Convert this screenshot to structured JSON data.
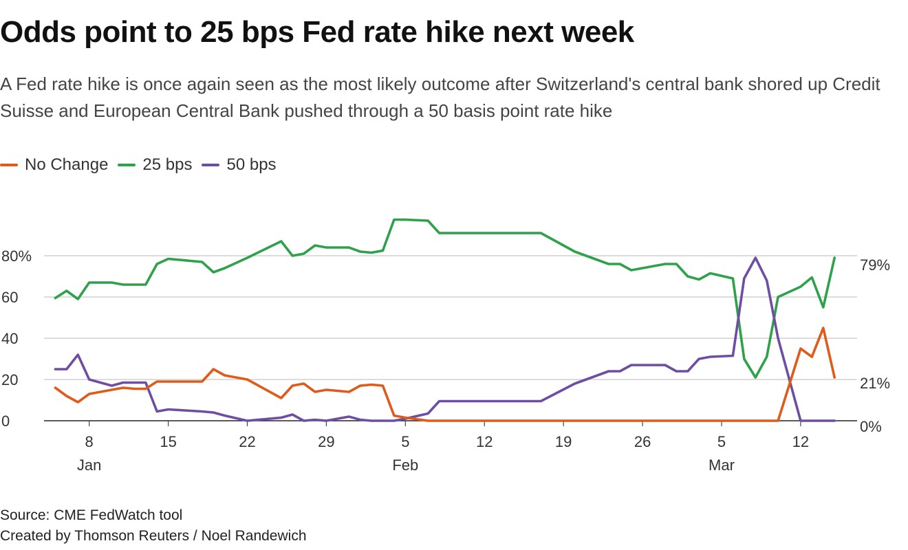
{
  "title": "Odds point to 25 bps Fed rate hike next week",
  "subtitle": "A Fed rate hike is once again seen as the most likely outcome after Switzerland's central bank shored up Credit Suisse and European Central Bank pushed through a 50 basis point rate hike",
  "source": "Source: CME FedWatch tool",
  "credit": "Created by Thomson Reuters / Noel Randewich",
  "colors": {
    "No Change": "#e05a1a",
    "25 bps": "#2ea14a",
    "50 bps": "#6e4ea3"
  },
  "chart_data": {
    "type": "line",
    "title": "Odds point to 25 bps Fed rate hike next week",
    "xlabel": "",
    "ylabel": "",
    "ylim": [
      0,
      100
    ],
    "xlim": [
      4,
      76
    ],
    "y_ticks": [
      0,
      20,
      40,
      60,
      80
    ],
    "y_tick_labels": [
      "0",
      "20",
      "40",
      "60",
      "80%"
    ],
    "x_ticks": [
      {
        "day": 8,
        "label": "8",
        "month": "Jan"
      },
      {
        "day": 15,
        "label": "15",
        "month": ""
      },
      {
        "day": 22,
        "label": "22",
        "month": ""
      },
      {
        "day": 29,
        "label": "29",
        "month": ""
      },
      {
        "day": 36,
        "label": "5",
        "month": "Feb"
      },
      {
        "day": 43,
        "label": "12",
        "month": ""
      },
      {
        "day": 50,
        "label": "19",
        "month": ""
      },
      {
        "day": 57,
        "label": "26",
        "month": ""
      },
      {
        "day": 64,
        "label": "5",
        "month": "Mar"
      },
      {
        "day": 71,
        "label": "12",
        "month": ""
      }
    ],
    "end_labels": [
      "79%",
      "21%",
      "0%"
    ],
    "series": [
      {
        "name": "No Change",
        "x": [
          5,
          6,
          7,
          8,
          10,
          11,
          12,
          13,
          14,
          18,
          19,
          20,
          22,
          25,
          26,
          27,
          28,
          29,
          31,
          32,
          33,
          34,
          35,
          36,
          38,
          39,
          45,
          50,
          55,
          60,
          65,
          67,
          69,
          71,
          72,
          73,
          74
        ],
        "values": [
          16,
          12,
          9,
          13,
          15,
          16,
          15.5,
          15.5,
          19,
          19,
          25,
          22,
          20,
          11,
          17,
          18,
          14,
          15,
          14,
          17,
          17.5,
          17,
          2.5,
          1.5,
          0,
          0,
          0,
          0,
          0,
          0,
          0,
          0,
          0,
          35,
          31,
          45,
          21
        ]
      },
      {
        "name": "25 bps",
        "x": [
          5,
          6,
          7,
          8,
          10,
          11,
          12,
          13,
          14,
          15,
          18,
          19,
          20,
          22,
          25,
          26,
          27,
          28,
          29,
          31,
          32,
          33,
          34,
          35,
          36,
          38,
          39,
          42,
          45,
          48,
          51,
          53,
          54,
          55,
          56,
          59,
          60,
          61,
          62,
          63,
          65,
          66,
          67,
          68,
          69,
          71,
          72,
          73,
          74
        ],
        "values": [
          59.5,
          63,
          59,
          67,
          67,
          66,
          66,
          66,
          76,
          78.5,
          77,
          72,
          74,
          79,
          87,
          80,
          81,
          85,
          84,
          84,
          82,
          81.5,
          82.5,
          97.5,
          97.5,
          97,
          91,
          91,
          91,
          91,
          82,
          78,
          76,
          76,
          73,
          76,
          76,
          70,
          68.5,
          71.5,
          69,
          30,
          21,
          31,
          60,
          65,
          69.5,
          55,
          79
        ]
      },
      {
        "name": "50 bps",
        "x": [
          5,
          6,
          7,
          8,
          10,
          11,
          12,
          13,
          14,
          15,
          18,
          19,
          20,
          22,
          25,
          26,
          27,
          28,
          29,
          31,
          32,
          33,
          34,
          35,
          36,
          38,
          39,
          42,
          45,
          48,
          51,
          53,
          54,
          55,
          56,
          59,
          60,
          61,
          62,
          63,
          65,
          66,
          67,
          68,
          69,
          71,
          72,
          73,
          74
        ],
        "values": [
          25,
          25,
          32,
          20,
          17,
          18.5,
          18.5,
          18.5,
          4.5,
          5.5,
          4.5,
          4,
          2.5,
          0,
          1.5,
          3,
          0,
          0.5,
          0,
          2,
          0.5,
          0,
          0,
          0,
          1,
          3.5,
          9.5,
          9.5,
          9.5,
          9.5,
          18,
          22,
          24,
          24,
          27,
          27,
          24,
          24,
          30,
          31,
          31.5,
          69,
          79,
          68,
          40,
          0,
          0,
          0,
          0
        ]
      }
    ]
  }
}
